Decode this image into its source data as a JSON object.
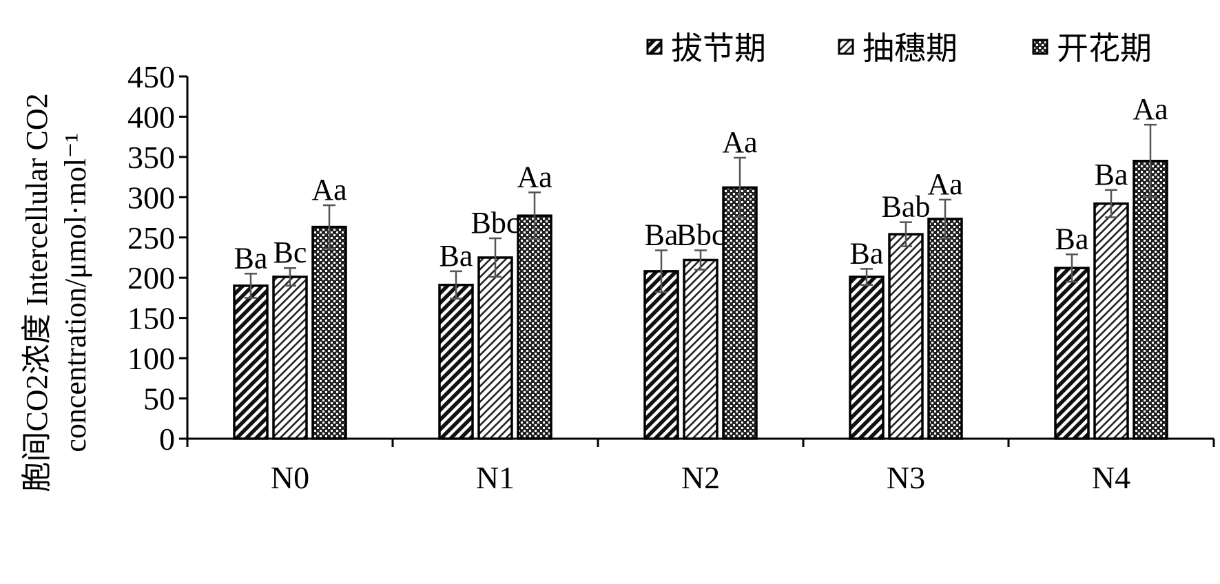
{
  "chart_data": {
    "type": "bar",
    "title": "",
    "ylabel_line1": "胞间CO2浓度 Intercellular CO2",
    "ylabel_line2": "concentration/μmol·mol⁻¹",
    "xlabel": "",
    "ylim": [
      0,
      450
    ],
    "ytick_step": 50,
    "yticks": [
      "0",
      "50",
      "100",
      "150",
      "200",
      "250",
      "300",
      "350",
      "400",
      "450"
    ],
    "categories": [
      "N0",
      "N1",
      "N2",
      "N3",
      "N4"
    ],
    "legend_position": "top-right",
    "series": [
      {
        "name": "拔节期",
        "pattern": "wide-diagonal",
        "values": [
          190,
          191,
          208,
          201,
          212
        ],
        "errors": [
          15,
          17,
          26,
          10,
          17
        ],
        "labels": [
          "Ba",
          "Ba",
          "Ba",
          "Ba",
          "Ba"
        ]
      },
      {
        "name": "抽穗期",
        "pattern": "light-diagonal",
        "values": [
          201,
          225,
          222,
          254,
          292
        ],
        "errors": [
          11,
          24,
          12,
          15,
          17
        ],
        "labels": [
          "Bc",
          "Bbc",
          "Bbc",
          "Bab",
          "Ba"
        ]
      },
      {
        "name": "开花期",
        "pattern": "checker",
        "values": [
          263,
          277,
          312,
          273,
          345
        ],
        "errors": [
          27,
          29,
          37,
          24,
          45
        ],
        "labels": [
          "Aa",
          "Aa",
          "Aa",
          "Aa",
          "Aa"
        ]
      }
    ]
  }
}
